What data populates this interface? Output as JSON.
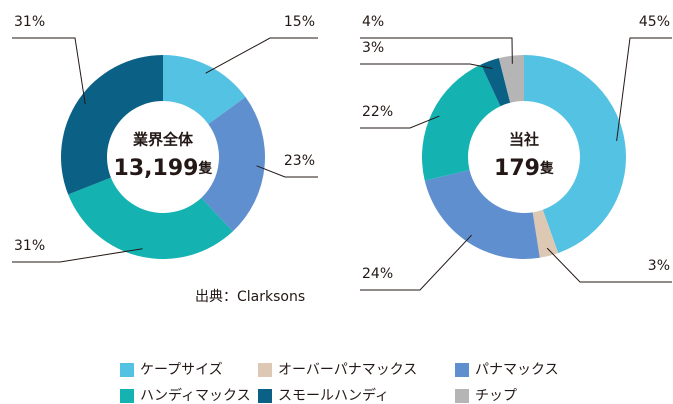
{
  "chart_data": [
    {
      "type": "pie",
      "center_title": "業界全体",
      "center_value": "13,199",
      "center_unit": "隻",
      "values": [
        15,
        23,
        31,
        31
      ],
      "value_labels": [
        "15%",
        "23%",
        "31%",
        "31%"
      ],
      "colors": [
        "#54c2e3",
        "#5f8fcf",
        "#14b2b1",
        "#0b6185"
      ]
    },
    {
      "type": "pie",
      "center_title": "当社",
      "center_value": "179",
      "center_unit": "隻",
      "categories": [
        "ケープサイズ",
        "オーバーパナマックス",
        "パナマックス",
        "ハンディマックス",
        "スモールハンディ",
        "チップ"
      ],
      "values": [
        45,
        3,
        24,
        22,
        3,
        4
      ],
      "value_labels": [
        "45%",
        "3%",
        "24%",
        "22%",
        "3%",
        "4%"
      ],
      "colors": [
        "#54c2e3",
        "#dcc8b3",
        "#5f8fcf",
        "#14b2b1",
        "#0b6185",
        "#b5b5b5"
      ]
    }
  ],
  "source": "出典：Clarksons"
}
